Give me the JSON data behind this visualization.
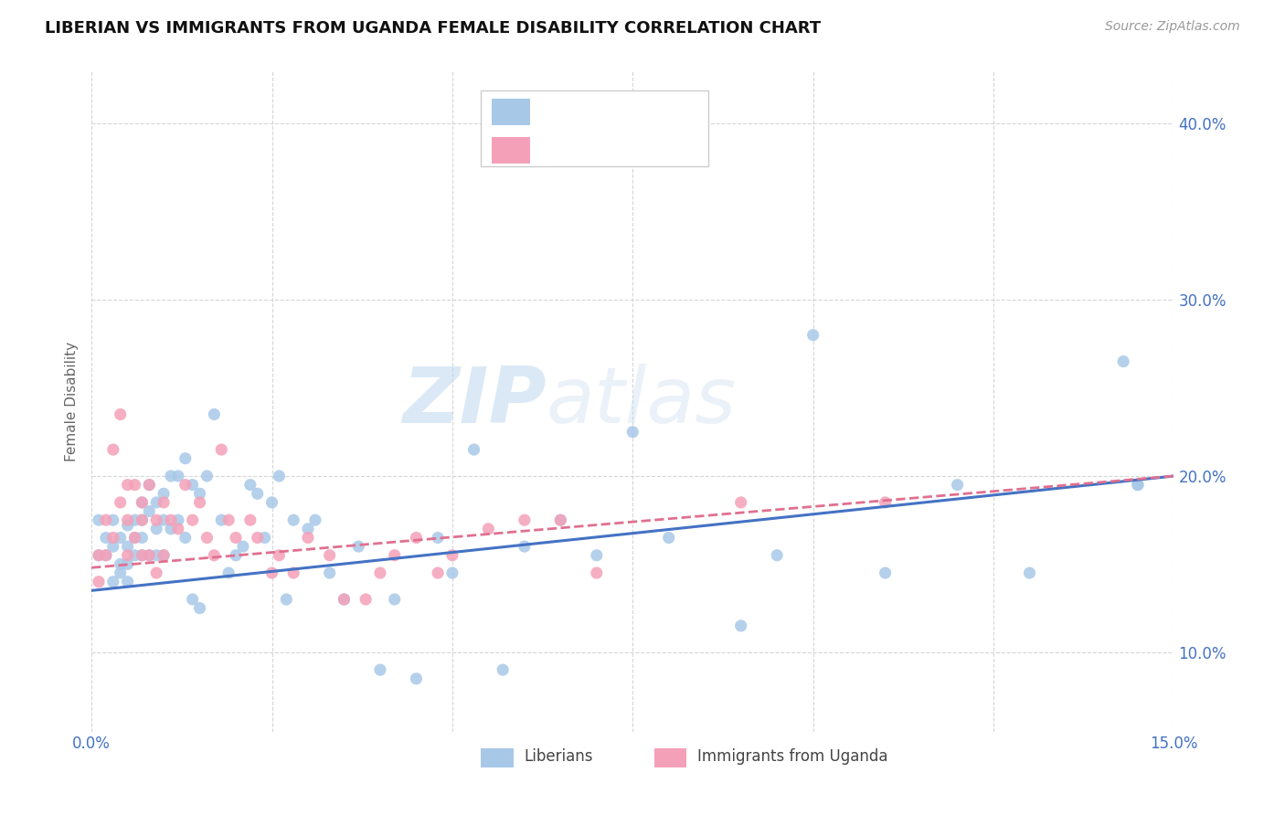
{
  "title": "LIBERIAN VS IMMIGRANTS FROM UGANDA FEMALE DISABILITY CORRELATION CHART",
  "source": "Source: ZipAtlas.com",
  "ylabel": "Female Disability",
  "yticks": [
    0.1,
    0.2,
    0.3,
    0.4
  ],
  "ytick_labels": [
    "10.0%",
    "20.0%",
    "30.0%",
    "40.0%"
  ],
  "xlim": [
    0.0,
    0.15
  ],
  "ylim": [
    0.055,
    0.43
  ],
  "legend_label1": "Liberians",
  "legend_label2": "Immigrants from Uganda",
  "color_blue": "#A8C8E8",
  "color_pink": "#F4A0B8",
  "color_blue_dark": "#4472C4",
  "color_pink_dark": "#E07090",
  "watermark_zip": "ZIP",
  "watermark_atlas": "atlas",
  "liberian_x": [
    0.001,
    0.001,
    0.002,
    0.002,
    0.003,
    0.003,
    0.003,
    0.004,
    0.004,
    0.004,
    0.005,
    0.005,
    0.005,
    0.005,
    0.006,
    0.006,
    0.006,
    0.007,
    0.007,
    0.007,
    0.007,
    0.008,
    0.008,
    0.008,
    0.009,
    0.009,
    0.009,
    0.01,
    0.01,
    0.01,
    0.011,
    0.011,
    0.012,
    0.012,
    0.013,
    0.013,
    0.014,
    0.014,
    0.015,
    0.015,
    0.016,
    0.017,
    0.018,
    0.019,
    0.02,
    0.021,
    0.022,
    0.023,
    0.024,
    0.025,
    0.026,
    0.027,
    0.028,
    0.03,
    0.031,
    0.033,
    0.035,
    0.037,
    0.04,
    0.042,
    0.045,
    0.048,
    0.05,
    0.053,
    0.057,
    0.06,
    0.065,
    0.07,
    0.075,
    0.08,
    0.09,
    0.095,
    0.1,
    0.11,
    0.12,
    0.13,
    0.143,
    0.145,
    0.145
  ],
  "liberian_y": [
    0.155,
    0.175,
    0.165,
    0.155,
    0.175,
    0.16,
    0.14,
    0.165,
    0.15,
    0.145,
    0.172,
    0.16,
    0.15,
    0.14,
    0.175,
    0.165,
    0.155,
    0.185,
    0.175,
    0.165,
    0.155,
    0.195,
    0.18,
    0.155,
    0.185,
    0.17,
    0.155,
    0.19,
    0.175,
    0.155,
    0.2,
    0.17,
    0.2,
    0.175,
    0.21,
    0.165,
    0.195,
    0.13,
    0.19,
    0.125,
    0.2,
    0.235,
    0.175,
    0.145,
    0.155,
    0.16,
    0.195,
    0.19,
    0.165,
    0.185,
    0.2,
    0.13,
    0.175,
    0.17,
    0.175,
    0.145,
    0.13,
    0.16,
    0.09,
    0.13,
    0.085,
    0.165,
    0.145,
    0.215,
    0.09,
    0.16,
    0.175,
    0.155,
    0.225,
    0.165,
    0.115,
    0.155,
    0.28,
    0.145,
    0.195,
    0.145,
    0.265,
    0.195,
    0.195
  ],
  "uganda_x": [
    0.001,
    0.001,
    0.002,
    0.002,
    0.003,
    0.003,
    0.004,
    0.004,
    0.005,
    0.005,
    0.005,
    0.006,
    0.006,
    0.007,
    0.007,
    0.007,
    0.008,
    0.008,
    0.009,
    0.009,
    0.01,
    0.01,
    0.011,
    0.012,
    0.013,
    0.014,
    0.015,
    0.016,
    0.017,
    0.018,
    0.019,
    0.02,
    0.022,
    0.023,
    0.025,
    0.026,
    0.028,
    0.03,
    0.033,
    0.035,
    0.038,
    0.04,
    0.042,
    0.045,
    0.048,
    0.05,
    0.055,
    0.06,
    0.065,
    0.07,
    0.09,
    0.11
  ],
  "uganda_y": [
    0.155,
    0.14,
    0.175,
    0.155,
    0.215,
    0.165,
    0.235,
    0.185,
    0.195,
    0.175,
    0.155,
    0.195,
    0.165,
    0.185,
    0.175,
    0.155,
    0.195,
    0.155,
    0.175,
    0.145,
    0.185,
    0.155,
    0.175,
    0.17,
    0.195,
    0.175,
    0.185,
    0.165,
    0.155,
    0.215,
    0.175,
    0.165,
    0.175,
    0.165,
    0.145,
    0.155,
    0.145,
    0.165,
    0.155,
    0.13,
    0.13,
    0.145,
    0.155,
    0.165,
    0.145,
    0.155,
    0.17,
    0.175,
    0.175,
    0.145,
    0.185,
    0.185
  ]
}
